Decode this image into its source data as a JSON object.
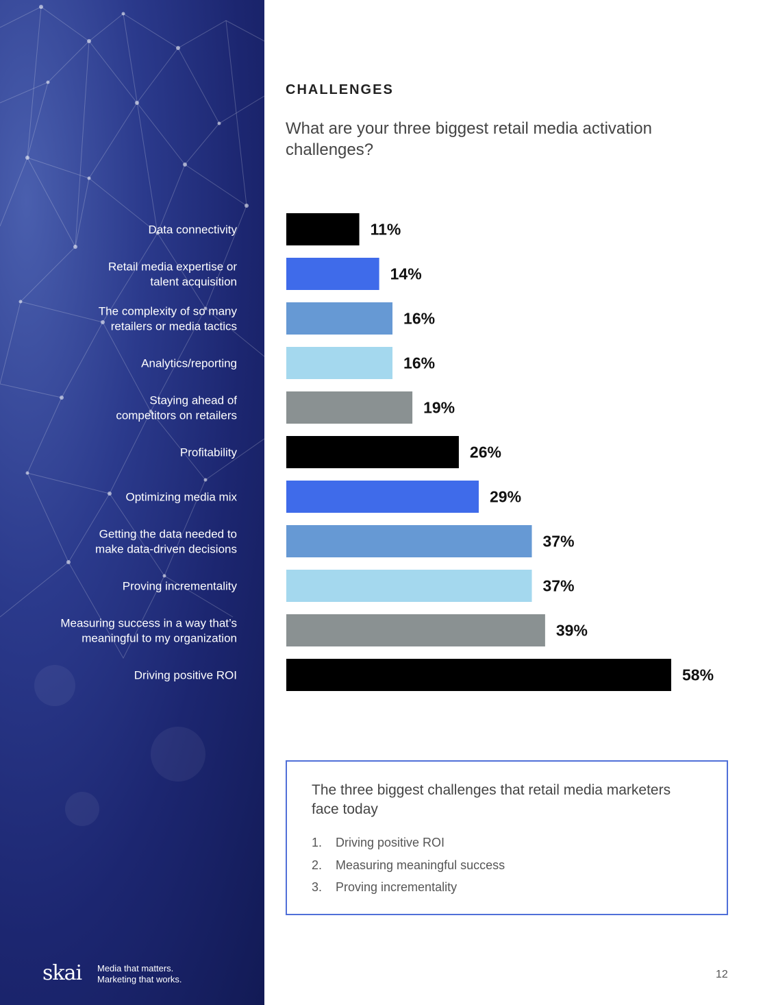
{
  "section_title": "CHALLENGES",
  "question": "What are your three biggest retail media activation challenges?",
  "chart_data": {
    "type": "bar",
    "orientation": "horizontal",
    "title": "What are your three biggest retail media activation challenges?",
    "xlim": [
      0,
      58
    ],
    "categories": [
      [
        "Data connectivity"
      ],
      [
        "Retail media expertise or",
        "talent acquisition"
      ],
      [
        "The complexity of so many",
        "retailers or media tactics"
      ],
      [
        "Analytics/reporting"
      ],
      [
        "Staying ahead of",
        "competitors on retailers"
      ],
      [
        "Profitability"
      ],
      [
        "Optimizing media mix"
      ],
      [
        "Getting the data needed to",
        "make data-driven decisions"
      ],
      [
        "Proving incrementality"
      ],
      [
        "Measuring success in a way that’s",
        "meaningful to my organization"
      ],
      [
        "Driving positive ROI"
      ]
    ],
    "values": [
      11,
      14,
      16,
      16,
      19,
      26,
      29,
      37,
      37,
      39,
      58
    ],
    "value_labels": [
      "11%",
      "14%",
      "16%",
      "16%",
      "19%",
      "26%",
      "29%",
      "37%",
      "37%",
      "39%",
      "58%"
    ],
    "bar_colors": [
      "#000000",
      "#3f6bea",
      "#6699d4",
      "#a4d8ee",
      "#8a9192",
      "#000000",
      "#3f6bea",
      "#6699d4",
      "#a4d8ee",
      "#8a9192",
      "#000000"
    ]
  },
  "callout": {
    "title": "The three biggest challenges that retail media marketers face today",
    "items": [
      {
        "num": "1.",
        "text": "Driving positive ROI"
      },
      {
        "num": "2.",
        "text": "Measuring meaningful success"
      },
      {
        "num": "3.",
        "text": "Proving incrementality"
      }
    ]
  },
  "footer": {
    "logo": "skai",
    "tagline_1": "Media that matters.",
    "tagline_2": "Marketing that works.",
    "page_number": "12"
  },
  "colors": {
    "panel_dark": "#121a55",
    "accent_border": "#4f6fd8"
  }
}
